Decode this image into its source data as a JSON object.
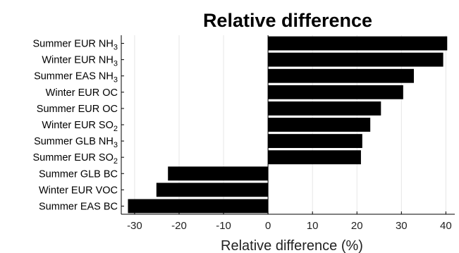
{
  "chart_data": {
    "type": "bar",
    "orientation": "horizontal",
    "title": "Relative difference",
    "xlabel": "Relative difference (%)",
    "ylabel": "",
    "xlim": [
      -33,
      42
    ],
    "xticks": [
      -30,
      -20,
      -10,
      0,
      10,
      20,
      30,
      40
    ],
    "grid": "vertical",
    "legend": "none",
    "categories": [
      {
        "base": "Summer EUR NH",
        "sub": "3"
      },
      {
        "base": "Winter EUR NH",
        "sub": "3"
      },
      {
        "base": "Summer EAS NH",
        "sub": "3"
      },
      {
        "base": "Winter EUR OC",
        "sub": ""
      },
      {
        "base": "Summer EUR OC",
        "sub": ""
      },
      {
        "base": "Winter EUR SO",
        "sub": "2"
      },
      {
        "base": "Summer GLB NH",
        "sub": "3"
      },
      {
        "base": "Summer EUR SO",
        "sub": "2"
      },
      {
        "base": "Summer GLB BC",
        "sub": ""
      },
      {
        "base": "Winter EUR VOC",
        "sub": ""
      },
      {
        "base": "Summer EAS BC",
        "sub": ""
      }
    ],
    "values": [
      40.3,
      39.4,
      32.8,
      30.4,
      25.4,
      23.0,
      21.2,
      20.9,
      -22.5,
      -25.1,
      -31.5
    ],
    "colors": {
      "bar": "#000000",
      "grid": "#e6e6e6",
      "axis": "#000000"
    }
  }
}
